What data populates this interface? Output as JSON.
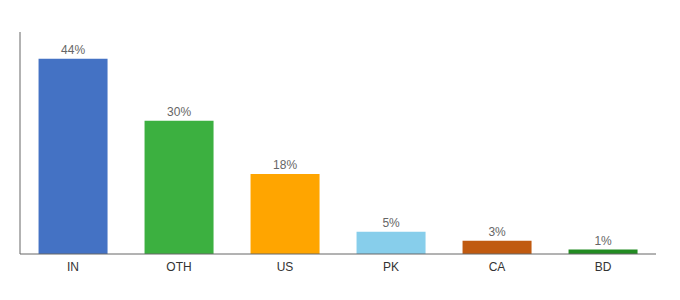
{
  "chart_data": {
    "type": "bar",
    "categories": [
      "IN",
      "OTH",
      "US",
      "PK",
      "CA",
      "BD"
    ],
    "values": [
      44,
      30,
      18,
      5,
      3,
      1
    ],
    "value_labels": [
      "44%",
      "30%",
      "18%",
      "5%",
      "3%",
      "1%"
    ],
    "data_labels": true,
    "colors": [
      "#4472C4",
      "#3CB040",
      "#FFA500",
      "#87CEEB",
      "#C05A10",
      "#228B22"
    ],
    "ylim": [
      0,
      50
    ],
    "grid": false,
    "tick_labels": "x"
  }
}
